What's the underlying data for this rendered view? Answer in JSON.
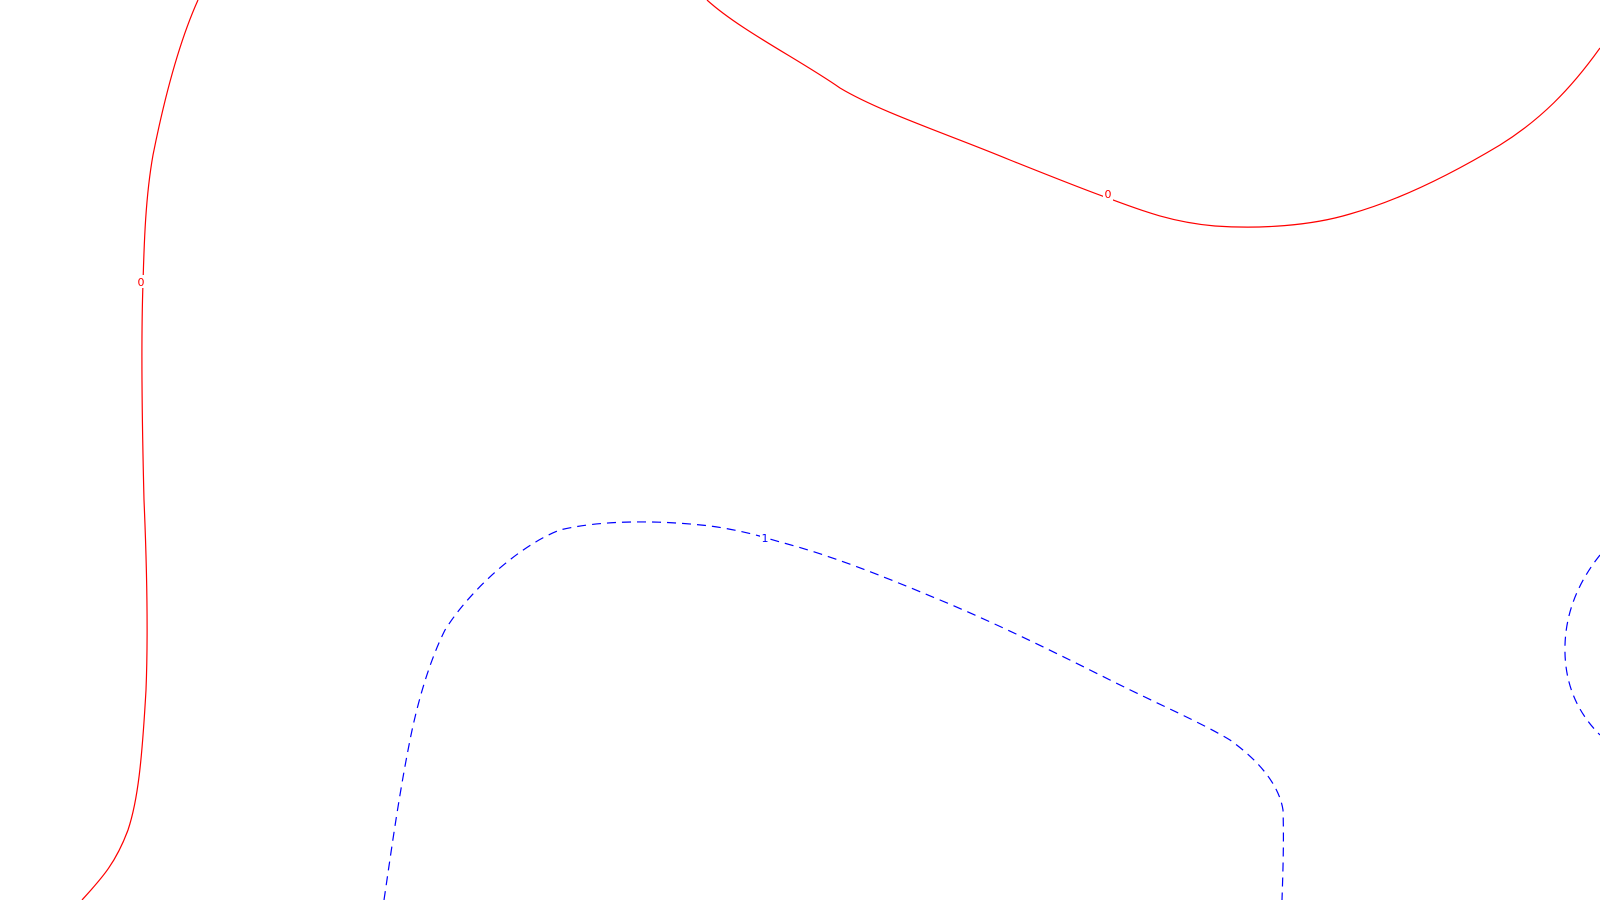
{
  "contours": [
    {
      "id": "contour-0-left",
      "level_label": "0",
      "color": "#ff0000",
      "style": "solid"
    },
    {
      "id": "contour-0-top",
      "level_label": "0",
      "color": "#ff0000",
      "style": "solid"
    },
    {
      "id": "contour-1-bottom",
      "level_label": "1",
      "color": "#0000ff",
      "style": "dashed"
    },
    {
      "id": "contour-1-right-edge",
      "level_label": "",
      "color": "#0000ff",
      "style": "dashed"
    }
  ],
  "background_color": "#ffffff"
}
